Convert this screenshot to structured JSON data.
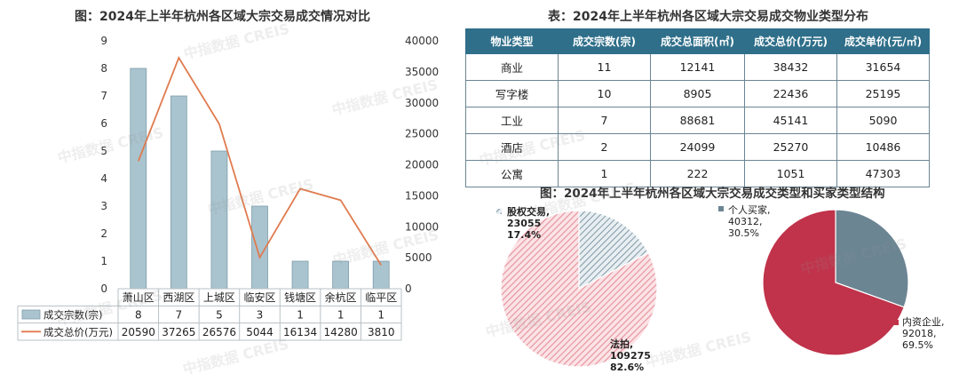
{
  "left_title": "图：2024年上半年杭州各区域大宗交易成交情况对比",
  "table_title": "表：2024年上半年杭州各区域大宗交易成交物业类型分布",
  "pies_title": "图：2024年上半年杭州各区域大宗交易成交类型和买家类型结构",
  "watermark": "中指数据 CREIS",
  "colors": {
    "bar": "#a9c4cf",
    "bar_edge": "#7e9eab",
    "line": "#e07b4f",
    "table_header": "#2f6f8a",
    "pie_hatch": "#e6909a",
    "pie_slate": "#6b8593",
    "pie_red": "#c0334a"
  },
  "table": {
    "headers": [
      "物业类型",
      "成交宗数(宗)",
      "成交总面积(㎡)",
      "成交总价(万元)",
      "成交单价(元/㎡)"
    ],
    "rows": [
      [
        "商业",
        "11",
        "12141",
        "38432",
        "31654"
      ],
      [
        "写字楼",
        "10",
        "8905",
        "22436",
        "25195"
      ],
      [
        "工业",
        "7",
        "88681",
        "45141",
        "5090"
      ],
      [
        "酒店",
        "2",
        "24099",
        "25270",
        "10486"
      ],
      [
        "公寓",
        "1",
        "222",
        "1051",
        "47303"
      ]
    ]
  },
  "chart_data": [
    {
      "type": "bar",
      "title": "图：2024年上半年杭州各区域大宗交易成交情况对比",
      "categories": [
        "萧山区",
        "西湖区",
        "上城区",
        "临安区",
        "钱塘区",
        "余杭区",
        "临平区"
      ],
      "series": [
        {
          "name": "成交宗数(宗)",
          "kind": "bar",
          "axis": "left",
          "values": [
            8,
            7,
            5,
            3,
            1,
            1,
            1
          ]
        },
        {
          "name": "成交总价(万元)",
          "kind": "line",
          "axis": "right",
          "values": [
            20590,
            37265,
            26576,
            5044,
            16134,
            14280,
            3810
          ]
        }
      ],
      "ylim": [
        0,
        9
      ],
      "yticks": [
        0,
        1,
        2,
        3,
        4,
        5,
        6,
        7,
        8,
        9
      ],
      "y2lim": [
        0,
        40000
      ],
      "y2ticks": [
        0,
        5000,
        10000,
        15000,
        20000,
        25000,
        30000,
        35000,
        40000
      ],
      "grid": false,
      "legend": "data table below chart"
    },
    {
      "type": "pie",
      "slices": [
        {
          "label": "股权交易,",
          "value": "23055",
          "pct": "17.4%",
          "share": 0.174,
          "style": "hatch-slate"
        },
        {
          "label": "法拍,",
          "value": "109275",
          "pct": "82.6%",
          "share": 0.826,
          "style": "hatch-pink"
        }
      ]
    },
    {
      "type": "pie",
      "slices": [
        {
          "label": "个人买家,",
          "value": "40312,",
          "pct": "30.5%",
          "share": 0.305,
          "style": "slate"
        },
        {
          "label": "内资企业,",
          "value": "92018,",
          "pct": "69.5%",
          "share": 0.695,
          "style": "red"
        }
      ]
    }
  ]
}
